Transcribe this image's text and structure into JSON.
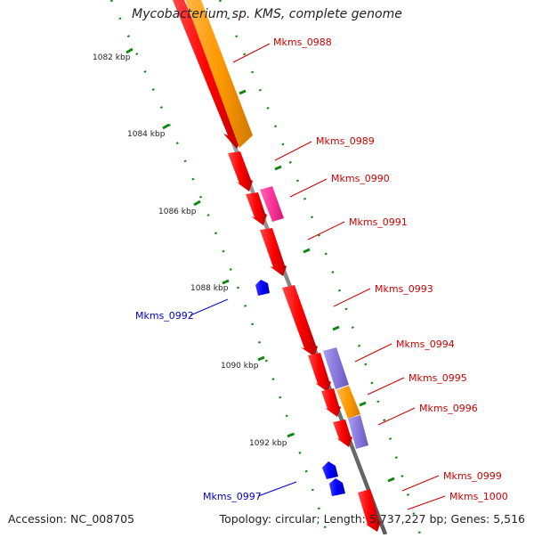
{
  "header": {
    "title": "Mycobacterium sp. KMS, complete genome"
  },
  "footer": {
    "accession": "Accession: NC_008705",
    "stats": "Topology: circular; Length: 5,737,227 bp; Genes: 5,516"
  },
  "colors": {
    "backbone": "#8a8a8a",
    "gene_red": "#ff0000",
    "gene_orange": "#ff9900",
    "gene_pink": "#ff3399",
    "gene_purple": "#8877dd",
    "gene_blue": "#0000ff",
    "tick": "#118811",
    "label_red": "#cc0000",
    "label_blue": "#0000cc"
  },
  "ruler": [
    "1082 kbp",
    "1084 kbp",
    "1086 kbp",
    "1088 kbp",
    "1090 kbp",
    "1092 kbp"
  ],
  "genes": [
    {
      "name": "",
      "strand": "+",
      "color": "red"
    },
    {
      "name": "Mkms_0988",
      "strand": "+",
      "color": "orange"
    },
    {
      "name": "Mkms_0989",
      "strand": "+",
      "color": "red"
    },
    {
      "name": "Mkms_0990",
      "strand": "+",
      "color": "pink"
    },
    {
      "name": "Mkms_0991",
      "strand": "+",
      "color": "red"
    },
    {
      "name": "Mkms_0992",
      "strand": "-",
      "color": "blue"
    },
    {
      "name": "Mkms_0993",
      "strand": "+",
      "color": "red"
    },
    {
      "name": "Mkms_0994",
      "strand": "+",
      "color": "red"
    },
    {
      "name": "Mkms_0995",
      "strand": "+",
      "color": "purple"
    },
    {
      "name": "Mkms_0996",
      "strand": "+",
      "color": "orange"
    },
    {
      "name": "",
      "strand": "+",
      "color": "red"
    },
    {
      "name": "",
      "strand": "+",
      "color": "purple"
    },
    {
      "name": "",
      "strand": "+",
      "color": "red"
    },
    {
      "name": "Mkms_0997",
      "strand": "-",
      "color": "blue"
    },
    {
      "name": "",
      "strand": "-",
      "color": "blue"
    },
    {
      "name": "Mkms_0999",
      "strand": "+",
      "color": "red"
    },
    {
      "name": "Mkms_1000",
      "strand": "+",
      "color": "red"
    }
  ]
}
